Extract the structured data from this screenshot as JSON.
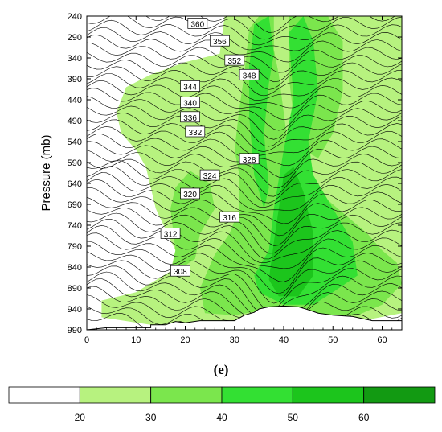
{
  "chart_data": {
    "type": "contour",
    "panel_label": "(e)",
    "ylabel": "Pressure (mb)",
    "xlabel": "",
    "xlim": [
      0,
      64
    ],
    "ylim": [
      240,
      990
    ],
    "y_inverted": true,
    "x_ticks": [
      0,
      10,
      20,
      30,
      40,
      50,
      60
    ],
    "y_ticks": [
      240,
      290,
      340,
      390,
      440,
      490,
      540,
      590,
      640,
      690,
      740,
      790,
      840,
      890,
      940,
      990
    ],
    "contour_levels": [
      360,
      356,
      352,
      348,
      344,
      340,
      336,
      332,
      328,
      324,
      320,
      316,
      312,
      308
    ],
    "contour_labels": [
      {
        "value": "360",
        "x": 22.5,
        "y": 258
      },
      {
        "value": "356",
        "x": 27,
        "y": 300
      },
      {
        "value": "352",
        "x": 30,
        "y": 346
      },
      {
        "value": "348",
        "x": 33,
        "y": 381
      },
      {
        "value": "344",
        "x": 21,
        "y": 408
      },
      {
        "value": "340",
        "x": 21,
        "y": 447
      },
      {
        "value": "336",
        "x": 21,
        "y": 482
      },
      {
        "value": "332",
        "x": 22,
        "y": 517
      },
      {
        "value": "328",
        "x": 33,
        "y": 582
      },
      {
        "value": "324",
        "x": 25,
        "y": 621
      },
      {
        "value": "320",
        "x": 21,
        "y": 665
      },
      {
        "value": "316",
        "x": 29,
        "y": 721
      },
      {
        "value": "312",
        "x": 17,
        "y": 760
      },
      {
        "value": "308",
        "x": 19,
        "y": 850
      }
    ],
    "shading_levels": [
      20,
      30,
      40,
      50,
      60
    ],
    "shading_colors": [
      "#ffffff",
      "#b7f27f",
      "#7be64d",
      "#33e033",
      "#1cc51c",
      "#129a12"
    ],
    "colorbar_labels": [
      "20",
      "30",
      "40",
      "50",
      "60"
    ],
    "terrain": [
      [
        0,
        990
      ],
      [
        4,
        985
      ],
      [
        13,
        985
      ],
      [
        13,
        978
      ],
      [
        16,
        978
      ],
      [
        18,
        970
      ],
      [
        20,
        973
      ],
      [
        23,
        968
      ],
      [
        30,
        968
      ],
      [
        32,
        955
      ],
      [
        34,
        948
      ],
      [
        35,
        940
      ],
      [
        37,
        935
      ],
      [
        40,
        933
      ],
      [
        43,
        935
      ],
      [
        45,
        942
      ],
      [
        47,
        950
      ],
      [
        50,
        955
      ],
      [
        54,
        958
      ],
      [
        56,
        963
      ],
      [
        58,
        968
      ],
      [
        64,
        968
      ]
    ]
  }
}
